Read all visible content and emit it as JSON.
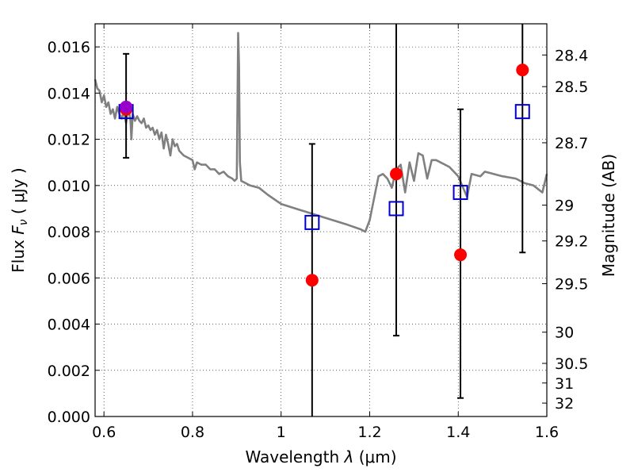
{
  "chart_data": {
    "type": "scatter",
    "xlabel": "Wavelength",
    "xlabel_symbol": "λ",
    "xlabel_unit": "(μm)",
    "ylabel": "Flux",
    "ylabel_symbol": "F",
    "ylabel_subscript": "ν",
    "ylabel_unit": "( μJy )",
    "y2label": "Magnitude (AB)",
    "xlim": [
      0.58,
      1.6
    ],
    "ylim": [
      0.0,
      0.017
    ],
    "grid": true,
    "x_ticks": [
      {
        "value": 0.6,
        "label": "0.6"
      },
      {
        "value": 0.8,
        "label": "0.8"
      },
      {
        "value": 1.0,
        "label": "1"
      },
      {
        "value": 1.2,
        "label": "1.2"
      },
      {
        "value": 1.4,
        "label": "1.4"
      },
      {
        "value": 1.6,
        "label": "1.6"
      }
    ],
    "y_ticks": [
      {
        "value": 0.0,
        "label": "0.000"
      },
      {
        "value": 0.002,
        "label": "0.002"
      },
      {
        "value": 0.004,
        "label": "0.004"
      },
      {
        "value": 0.006,
        "label": "0.006"
      },
      {
        "value": 0.008,
        "label": "0.008"
      },
      {
        "value": 0.01,
        "label": "0.010"
      },
      {
        "value": 0.012,
        "label": "0.012"
      },
      {
        "value": 0.014,
        "label": "0.014"
      },
      {
        "value": 0.016,
        "label": "0.016"
      }
    ],
    "y2_ticks": [
      {
        "flux": 0.01565,
        "label": "28.4"
      },
      {
        "flux": 0.01428,
        "label": "28.5"
      },
      {
        "flux": 0.01185,
        "label": "28.7"
      },
      {
        "flux": 0.00915,
        "label": "29"
      },
      {
        "flux": 0.0076,
        "label": "29.2"
      },
      {
        "flux": 0.00575,
        "label": "29.5"
      },
      {
        "flux": 0.00365,
        "label": "30"
      },
      {
        "flux": 0.0023,
        "label": "30.5"
      },
      {
        "flux": 0.00145,
        "label": "31"
      },
      {
        "flux": 0.00058,
        "label": "32"
      }
    ],
    "model_spectrum": {
      "name": "model SED",
      "color": "#808080",
      "x": [
        0.58,
        0.585,
        0.59,
        0.595,
        0.6,
        0.605,
        0.61,
        0.615,
        0.62,
        0.625,
        0.63,
        0.635,
        0.64,
        0.645,
        0.65,
        0.655,
        0.66,
        0.662,
        0.665,
        0.67,
        0.675,
        0.68,
        0.685,
        0.69,
        0.695,
        0.7,
        0.705,
        0.71,
        0.715,
        0.72,
        0.725,
        0.73,
        0.735,
        0.74,
        0.745,
        0.75,
        0.755,
        0.76,
        0.765,
        0.77,
        0.78,
        0.79,
        0.8,
        0.805,
        0.81,
        0.82,
        0.83,
        0.84,
        0.85,
        0.86,
        0.87,
        0.88,
        0.89,
        0.895,
        0.9,
        0.903,
        0.905,
        0.907,
        0.91,
        0.92,
        0.93,
        0.95,
        0.97,
        1.0,
        1.05,
        1.1,
        1.15,
        1.18,
        1.19,
        1.2,
        1.22,
        1.23,
        1.24,
        1.25,
        1.26,
        1.27,
        1.28,
        1.29,
        1.3,
        1.31,
        1.32,
        1.33,
        1.34,
        1.35,
        1.36,
        1.38,
        1.4,
        1.42,
        1.43,
        1.45,
        1.46,
        1.5,
        1.53,
        1.55,
        1.57,
        1.59,
        1.6
      ],
      "y": [
        0.0146,
        0.0142,
        0.0141,
        0.0136,
        0.0139,
        0.0134,
        0.0136,
        0.0131,
        0.0133,
        0.0129,
        0.0134,
        0.0131,
        0.0129,
        0.0132,
        0.0127,
        0.0134,
        0.0128,
        0.012,
        0.0131,
        0.0128,
        0.013,
        0.0128,
        0.0127,
        0.0129,
        0.0125,
        0.0126,
        0.0124,
        0.0125,
        0.0122,
        0.0124,
        0.012,
        0.0123,
        0.0116,
        0.0122,
        0.0118,
        0.0113,
        0.012,
        0.0117,
        0.0118,
        0.0115,
        0.0113,
        0.0112,
        0.0111,
        0.0107,
        0.011,
        0.0109,
        0.0109,
        0.0107,
        0.0107,
        0.0105,
        0.0106,
        0.0104,
        0.0103,
        0.0102,
        0.0103,
        0.0166,
        0.0152,
        0.011,
        0.0102,
        0.0101,
        0.01,
        0.0099,
        0.0096,
        0.0092,
        0.0089,
        0.0086,
        0.0083,
        0.0081,
        0.008,
        0.0085,
        0.0104,
        0.0105,
        0.0103,
        0.0099,
        0.0107,
        0.0109,
        0.0097,
        0.011,
        0.0102,
        0.0114,
        0.0113,
        0.0103,
        0.0111,
        0.0111,
        0.011,
        0.0108,
        0.0104,
        0.0095,
        0.0105,
        0.0104,
        0.0106,
        0.0104,
        0.0103,
        0.0101,
        0.01,
        0.0097,
        0.0105
      ]
    },
    "series": [
      {
        "name": "photometry (red)",
        "marker": "circle",
        "color": "#ff0000",
        "x": [
          0.65,
          1.07,
          1.26,
          1.405,
          1.545
        ],
        "y": [
          0.0133,
          0.0059,
          0.0105,
          0.007,
          0.015
        ]
      },
      {
        "name": "model photometry (blue squares)",
        "marker": "square",
        "color": "#0000cc",
        "x": [
          0.65,
          1.07,
          1.26,
          1.405,
          1.545
        ],
        "y": [
          0.0132,
          0.0084,
          0.009,
          0.0097,
          0.0132
        ]
      }
    ],
    "errorbars": [
      {
        "x": 0.65,
        "low": 0.0112,
        "high": 0.0157
      },
      {
        "x": 1.07,
        "low": 0.0,
        "high": 0.0118
      },
      {
        "x": 1.26,
        "low": 0.0035,
        "high": 0.0171
      },
      {
        "x": 1.405,
        "low": 0.0008,
        "high": 0.0133
      },
      {
        "x": 1.545,
        "low": 0.0071,
        "high": 0.0171
      }
    ],
    "highlight_point": {
      "x": 0.65,
      "y": 0.0134,
      "color": "#9900cc"
    }
  }
}
